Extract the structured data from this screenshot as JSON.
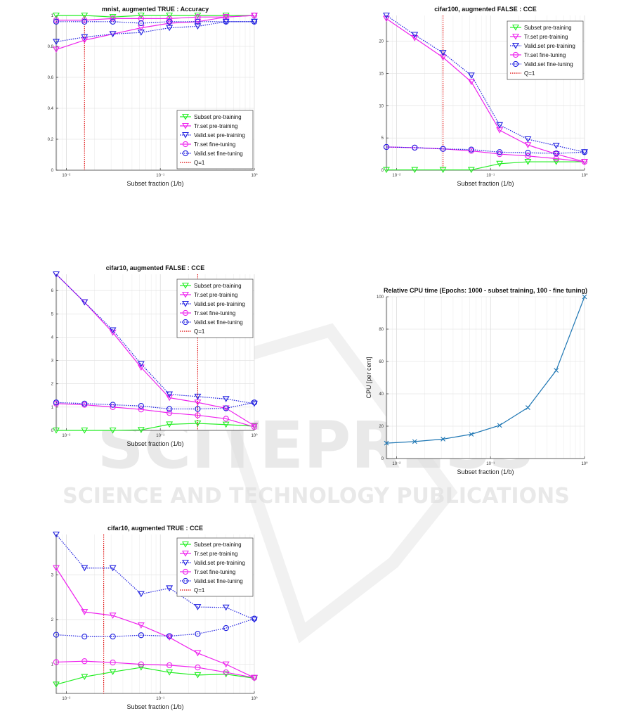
{
  "watermark": {
    "line1": "SCITEPRESS",
    "line2": "SCIENCE AND TECHNOLOGY PUBLICATIONS"
  },
  "colors": {
    "subset_pretraining": "#22ee22",
    "tr_pretraining": "#ee22ee",
    "valid_pretraining": "#1f1fe0",
    "tr_finetuning": "#ee22ee",
    "valid_finetuning": "#1f1fe0",
    "q_line": "#dd0000",
    "cpu_line": "#1f77b4"
  },
  "icons": {
    "triangle_down": "triangle-down-marker-icon",
    "circle": "circle-marker-icon",
    "cross": "x-marker-icon"
  },
  "chart_data": [
    {
      "id": "mnist-true-accuracy",
      "type": "line",
      "title": "mnist, augmented TRUE : Accuracy",
      "xlabel": "Subset fraction (1/b)",
      "ylabel": "",
      "xscale": "log",
      "xlim": [
        0.0078125,
        1
      ],
      "ylim": [
        0,
        1
      ],
      "yticks": [
        0,
        0.2,
        0.4,
        0.6,
        0.8,
        1
      ],
      "ytick_labels": [
        "0",
        "0.2",
        "0.4",
        "0.6",
        "0.8",
        "1"
      ],
      "xticks": [
        0.01,
        0.1,
        1
      ],
      "xtick_labels": [
        "10⁻²",
        "10⁻¹",
        "10⁰"
      ],
      "grid": true,
      "legend_position": "bottom-right",
      "q_line": 0.015625,
      "x": [
        0.0078125,
        0.015625,
        0.03125,
        0.0625,
        0.125,
        0.25,
        0.5,
        1
      ],
      "series": [
        {
          "name": "Subset pre-training",
          "marker": "triangle-down",
          "style": "solid",
          "color_key": "subset_pretraining",
          "values": [
            1.0,
            1.0,
            0.99,
            1.0,
            1.0,
            1.0,
            1.0,
            1.0
          ]
        },
        {
          "name": "Tr.set pre-training",
          "marker": "triangle-down",
          "style": "solid",
          "color_key": "tr_pretraining",
          "values": [
            0.78,
            0.84,
            0.88,
            0.92,
            0.95,
            0.96,
            0.99,
            1.0
          ]
        },
        {
          "name": "Valid.set pre-training",
          "marker": "triangle-down",
          "style": "dotted",
          "color_key": "valid_pretraining",
          "values": [
            0.83,
            0.86,
            0.88,
            0.89,
            0.92,
            0.93,
            0.96,
            0.96
          ]
        },
        {
          "name": "Tr.set fine-tuning",
          "marker": "circle",
          "style": "solid",
          "color_key": "tr_finetuning",
          "values": [
            0.97,
            0.97,
            0.98,
            0.98,
            0.98,
            0.99,
            0.99,
            1.0
          ]
        },
        {
          "name": "Valid.set fine-tuning",
          "marker": "circle",
          "style": "dotted",
          "color_key": "valid_finetuning",
          "values": [
            0.96,
            0.96,
            0.96,
            0.95,
            0.96,
            0.96,
            0.96,
            0.96
          ]
        }
      ],
      "q_label": "Q=1"
    },
    {
      "id": "cifar100-false-cce",
      "type": "line",
      "title": "cifar100, augmented FALSE : CCE",
      "xlabel": "Subset fraction (1/b)",
      "ylabel": "",
      "xscale": "log",
      "xlim": [
        0.0078125,
        1
      ],
      "ylim": [
        0,
        24
      ],
      "yticks": [
        0,
        5,
        10,
        15,
        20
      ],
      "ytick_labels": [
        "0",
        "5",
        "10",
        "15",
        "20"
      ],
      "xticks": [
        0.01,
        0.1,
        1
      ],
      "xtick_labels": [
        "10⁻²",
        "10⁻¹",
        "10⁰"
      ],
      "grid": true,
      "legend_position": "top-right",
      "q_line": 0.03125,
      "x": [
        0.0078125,
        0.015625,
        0.03125,
        0.0625,
        0.125,
        0.25,
        0.5,
        1
      ],
      "series": [
        {
          "name": "Subset pre-training",
          "marker": "triangle-down",
          "style": "solid",
          "color_key": "subset_pretraining",
          "values": [
            0.05,
            0.05,
            0.05,
            0.05,
            1.0,
            1.3,
            1.3,
            1.3
          ]
        },
        {
          "name": "Tr.set pre-training",
          "marker": "triangle-down",
          "style": "solid",
          "color_key": "tr_pretraining",
          "values": [
            23.5,
            20.5,
            17.5,
            13.7,
            6.2,
            3.9,
            2.5,
            1.3
          ]
        },
        {
          "name": "Valid.set pre-training",
          "marker": "triangle-down",
          "style": "dotted",
          "color_key": "valid_pretraining",
          "values": [
            24.0,
            21.0,
            18.2,
            14.7,
            7.0,
            4.8,
            3.8,
            2.8
          ]
        },
        {
          "name": "Tr.set fine-tuning",
          "marker": "circle",
          "style": "solid",
          "color_key": "tr_finetuning",
          "values": [
            3.6,
            3.5,
            3.3,
            3.0,
            2.5,
            2.2,
            1.8,
            1.3
          ]
        },
        {
          "name": "Valid.set fine-tuning",
          "marker": "circle",
          "style": "dotted",
          "color_key": "valid_finetuning",
          "values": [
            3.6,
            3.5,
            3.3,
            3.2,
            2.8,
            2.7,
            2.6,
            2.8
          ]
        }
      ],
      "q_label": "Q=1"
    },
    {
      "id": "cifar10-false-cce",
      "type": "line",
      "title": "cifar10, augmented FALSE : CCE",
      "xlabel": "Subset fraction (1/b)",
      "ylabel": "",
      "xscale": "log",
      "xlim": [
        0.0078125,
        1
      ],
      "ylim": [
        0,
        6.7
      ],
      "yticks": [
        0,
        1,
        2,
        3,
        4,
        5,
        6
      ],
      "ytick_labels": [
        "0",
        "1",
        "2",
        "3",
        "4",
        "5",
        "6"
      ],
      "xticks": [
        0.01,
        0.1,
        1
      ],
      "xtick_labels": [
        "10⁻²",
        "10⁻¹",
        "10⁰"
      ],
      "grid": true,
      "legend_position": "top-right",
      "q_line": 0.25,
      "x": [
        0.0078125,
        0.015625,
        0.03125,
        0.0625,
        0.125,
        0.25,
        0.5,
        1
      ],
      "series": [
        {
          "name": "Subset pre-training",
          "marker": "triangle-down",
          "style": "solid",
          "color_key": "subset_pretraining",
          "values": [
            0.0,
            0.0,
            0.0,
            0.02,
            0.26,
            0.3,
            0.25,
            0.18
          ]
        },
        {
          "name": "Tr.set pre-training",
          "marker": "triangle-down",
          "style": "solid",
          "color_key": "tr_pretraining",
          "values": [
            6.7,
            5.5,
            4.2,
            2.7,
            1.4,
            1.2,
            0.95,
            0.2
          ]
        },
        {
          "name": "Valid.set pre-training",
          "marker": "triangle-down",
          "style": "dotted",
          "color_key": "valid_pretraining",
          "values": [
            6.7,
            5.5,
            4.3,
            2.85,
            1.55,
            1.45,
            1.35,
            1.15
          ]
        },
        {
          "name": "Tr.set fine-tuning",
          "marker": "circle",
          "style": "solid",
          "color_key": "tr_finetuning",
          "values": [
            1.15,
            1.1,
            1.0,
            0.9,
            0.75,
            0.65,
            0.5,
            0.15
          ]
        },
        {
          "name": "Valid.set fine-tuning",
          "marker": "circle",
          "style": "dotted",
          "color_key": "valid_finetuning",
          "values": [
            1.2,
            1.15,
            1.1,
            1.05,
            0.92,
            0.92,
            0.95,
            1.2
          ]
        }
      ],
      "q_label": "Q=1"
    },
    {
      "id": "relative-cpu-time",
      "type": "line",
      "title": "Relative CPU time (Epochs: 1000 - subset training, 100 - fine tuning)",
      "xlabel": "Subset fraction (1/b)",
      "ylabel": "CPU [per cent]",
      "xscale": "log",
      "xlim": [
        0.0078125,
        1
      ],
      "ylim": [
        0,
        100
      ],
      "yticks": [
        0,
        20,
        40,
        60,
        80,
        100
      ],
      "ytick_labels": [
        "0",
        "20",
        "40",
        "60",
        "80",
        "100"
      ],
      "xticks": [
        0.01,
        0.1,
        1
      ],
      "xtick_labels": [
        "10⁻²",
        "10⁻¹",
        "10⁰"
      ],
      "grid": true,
      "x": [
        0.0078125,
        0.015625,
        0.03125,
        0.0625,
        0.125,
        0.25,
        0.5,
        1
      ],
      "series": [
        {
          "marker": "x",
          "style": "solid",
          "color_key": "cpu_line",
          "values": [
            9.5,
            10.5,
            12,
            15,
            20.5,
            31.5,
            54.5,
            100
          ]
        }
      ]
    },
    {
      "id": "cifar10-true-cce",
      "type": "line",
      "title": "cifar10, augmented TRUE : CCE",
      "xlabel": "Subset fraction (1/b)",
      "ylabel": "",
      "xscale": "log",
      "xlim": [
        0.0078125,
        1
      ],
      "ylim": [
        0.35,
        3.9
      ],
      "yticks": [
        1,
        2,
        3
      ],
      "ytick_labels": [
        "1",
        "2",
        "3"
      ],
      "xticks": [
        0.01,
        0.1,
        1
      ],
      "xtick_labels": [
        "10⁻²",
        "10⁻¹",
        "10⁰"
      ],
      "grid": true,
      "legend_position": "top-right",
      "q_line": 0.025,
      "x": [
        0.0078125,
        0.015625,
        0.03125,
        0.0625,
        0.125,
        0.25,
        0.5,
        1
      ],
      "series": [
        {
          "name": "Subset pre-training",
          "marker": "triangle-down",
          "style": "solid",
          "color_key": "subset_pretraining",
          "values": [
            0.55,
            0.72,
            0.83,
            0.93,
            0.82,
            0.76,
            0.78,
            0.69
          ]
        },
        {
          "name": "Tr.set pre-training",
          "marker": "triangle-down",
          "style": "solid",
          "color_key": "tr_pretraining",
          "values": [
            3.15,
            2.17,
            2.09,
            1.87,
            1.6,
            1.25,
            1.0,
            0.7
          ]
        },
        {
          "name": "Valid.set pre-training",
          "marker": "triangle-down",
          "style": "dotted",
          "color_key": "valid_pretraining",
          "values": [
            3.9,
            3.15,
            3.15,
            2.57,
            2.7,
            2.28,
            2.27,
            2.0
          ]
        },
        {
          "name": "Tr.set fine-tuning",
          "marker": "circle",
          "style": "solid",
          "color_key": "tr_finetuning",
          "values": [
            1.05,
            1.07,
            1.04,
            1.0,
            0.98,
            0.93,
            0.82,
            0.7
          ]
        },
        {
          "name": "Valid.set fine-tuning",
          "marker": "circle",
          "style": "dotted",
          "color_key": "valid_finetuning",
          "values": [
            1.66,
            1.62,
            1.62,
            1.65,
            1.63,
            1.68,
            1.81,
            2.02
          ]
        }
      ],
      "q_label": "Q=1"
    }
  ]
}
